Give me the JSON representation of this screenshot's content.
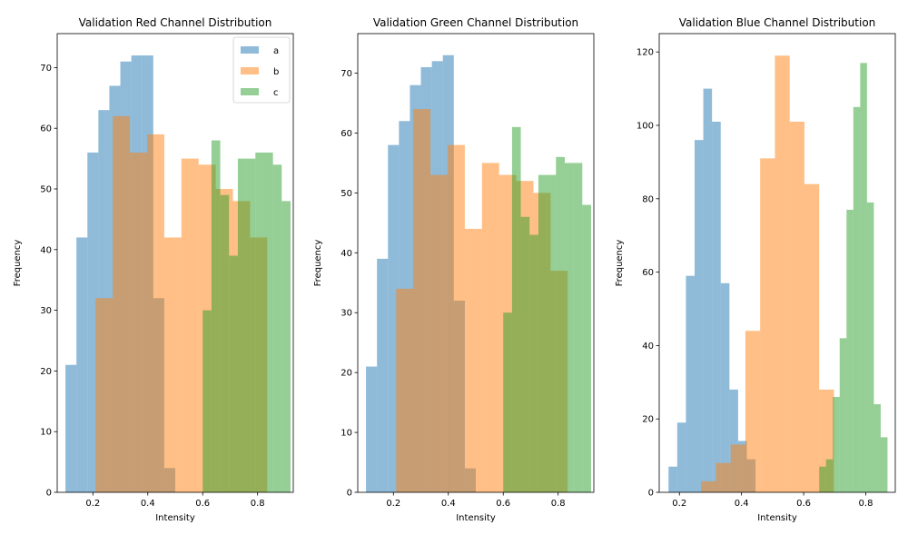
{
  "chart_data": [
    {
      "type": "histogram",
      "title": "Validation Red Channel Distribution",
      "xlabel": "Intensity",
      "ylabel": "Frequency",
      "xlim": [
        0.07,
        0.93
      ],
      "ylim": [
        0,
        75.6
      ],
      "xticks": [
        0.2,
        0.4,
        0.6,
        0.8
      ],
      "yticks": [
        0,
        10,
        20,
        30,
        40,
        50,
        60,
        70
      ],
      "alpha": 0.5,
      "grid": false,
      "legend": {
        "placement": "top-right",
        "entries": [
          "a",
          "b",
          "c"
        ]
      },
      "series": [
        {
          "name": "a",
          "color": "#1f77b4",
          "bins": [
            [
              0.1,
              0.14,
              21
            ],
            [
              0.14,
              0.18,
              42
            ],
            [
              0.18,
              0.22,
              56
            ],
            [
              0.22,
              0.26,
              63
            ],
            [
              0.26,
              0.3,
              67
            ],
            [
              0.3,
              0.34,
              71
            ],
            [
              0.34,
              0.38,
              72
            ],
            [
              0.38,
              0.42,
              72
            ],
            [
              0.42,
              0.46,
              32
            ],
            [
              0.46,
              0.5,
              4
            ]
          ]
        },
        {
          "name": "b",
          "color": "#ff7f0e",
          "bins": [
            [
              0.21,
              0.2725,
              32
            ],
            [
              0.2725,
              0.335,
              62
            ],
            [
              0.335,
              0.3975,
              56
            ],
            [
              0.3975,
              0.46,
              59
            ],
            [
              0.46,
              0.5225,
              42
            ],
            [
              0.5225,
              0.585,
              55
            ],
            [
              0.585,
              0.6475,
              54
            ],
            [
              0.6475,
              0.71,
              50
            ],
            [
              0.71,
              0.7725,
              48
            ],
            [
              0.7725,
              0.835,
              42
            ]
          ]
        },
        {
          "name": "c",
          "color": "#2ca02c",
          "bins": [
            [
              0.6,
              0.632,
              30
            ],
            [
              0.632,
              0.664,
              58
            ],
            [
              0.664,
              0.696,
              49
            ],
            [
              0.696,
              0.728,
              39
            ],
            [
              0.728,
              0.76,
              55
            ],
            [
              0.76,
              0.792,
              55
            ],
            [
              0.792,
              0.824,
              56
            ],
            [
              0.824,
              0.856,
              56
            ],
            [
              0.856,
              0.888,
              54
            ],
            [
              0.888,
              0.92,
              48
            ]
          ]
        }
      ]
    },
    {
      "type": "histogram",
      "title": "Validation Green Channel Distribution",
      "xlabel": "Intensity",
      "ylabel": "Frequency",
      "xlim": [
        0.07,
        0.93
      ],
      "ylim": [
        0,
        76.6
      ],
      "xticks": [
        0.2,
        0.4,
        0.6,
        0.8
      ],
      "yticks": [
        0,
        10,
        20,
        30,
        40,
        50,
        60,
        70
      ],
      "alpha": 0.5,
      "grid": false,
      "series": [
        {
          "name": "a",
          "color": "#1f77b4",
          "bins": [
            [
              0.1,
              0.14,
              21
            ],
            [
              0.14,
              0.18,
              39
            ],
            [
              0.18,
              0.22,
              58
            ],
            [
              0.22,
              0.26,
              62
            ],
            [
              0.26,
              0.3,
              68
            ],
            [
              0.3,
              0.34,
              71
            ],
            [
              0.34,
              0.38,
              72
            ],
            [
              0.38,
              0.42,
              73
            ],
            [
              0.42,
              0.46,
              32
            ],
            [
              0.46,
              0.5,
              4
            ]
          ]
        },
        {
          "name": "b",
          "color": "#ff7f0e",
          "bins": [
            [
              0.21,
              0.2725,
              34
            ],
            [
              0.2725,
              0.335,
              64
            ],
            [
              0.335,
              0.3975,
              53
            ],
            [
              0.3975,
              0.46,
              58
            ],
            [
              0.46,
              0.5225,
              44
            ],
            [
              0.5225,
              0.585,
              55
            ],
            [
              0.585,
              0.6475,
              53
            ],
            [
              0.6475,
              0.71,
              52
            ],
            [
              0.71,
              0.7725,
              50
            ],
            [
              0.7725,
              0.835,
              37
            ]
          ]
        },
        {
          "name": "c",
          "color": "#2ca02c",
          "bins": [
            [
              0.6,
              0.632,
              30
            ],
            [
              0.632,
              0.664,
              61
            ],
            [
              0.664,
              0.696,
              46
            ],
            [
              0.696,
              0.728,
              43
            ],
            [
              0.728,
              0.76,
              53
            ],
            [
              0.76,
              0.792,
              53
            ],
            [
              0.792,
              0.824,
              56
            ],
            [
              0.824,
              0.856,
              55
            ],
            [
              0.856,
              0.888,
              55
            ],
            [
              0.888,
              0.92,
              48
            ]
          ]
        }
      ]
    },
    {
      "type": "histogram",
      "title": "Validation Blue Channel Distribution",
      "xlabel": "Intensity",
      "ylabel": "Frequency",
      "xlim": [
        0.135,
        0.895
      ],
      "ylim": [
        0,
        125
      ],
      "xticks": [
        0.2,
        0.4,
        0.6,
        0.8
      ],
      "yticks": [
        0,
        20,
        40,
        60,
        80,
        100,
        120
      ],
      "alpha": 0.5,
      "grid": false,
      "series": [
        {
          "name": "a",
          "color": "#1f77b4",
          "bins": [
            [
              0.165,
              0.193,
              7
            ],
            [
              0.193,
              0.221,
              19
            ],
            [
              0.221,
              0.249,
              59
            ],
            [
              0.249,
              0.277,
              96
            ],
            [
              0.277,
              0.305,
              110
            ],
            [
              0.305,
              0.333,
              101
            ],
            [
              0.333,
              0.361,
              57
            ],
            [
              0.361,
              0.389,
              28
            ],
            [
              0.389,
              0.417,
              14
            ],
            [
              0.417,
              0.445,
              9
            ]
          ]
        },
        {
          "name": "b",
          "color": "#ff7f0e",
          "bins": [
            [
              0.27,
              0.3175,
              3
            ],
            [
              0.3175,
              0.365,
              8
            ],
            [
              0.365,
              0.4125,
              13
            ],
            [
              0.4125,
              0.46,
              44
            ],
            [
              0.46,
              0.5075,
              91
            ],
            [
              0.5075,
              0.555,
              119
            ],
            [
              0.555,
              0.6025,
              101
            ],
            [
              0.6025,
              0.65,
              84
            ],
            [
              0.65,
              0.6975,
              28
            ],
            [
              0.6975,
              0.745,
              0
            ]
          ]
        },
        {
          "name": "c",
          "color": "#2ca02c",
          "bins": [
            [
              0.65,
              0.672,
              7
            ],
            [
              0.672,
              0.694,
              9
            ],
            [
              0.694,
              0.716,
              26
            ],
            [
              0.716,
              0.738,
              42
            ],
            [
              0.738,
              0.76,
              77
            ],
            [
              0.76,
              0.782,
              105
            ],
            [
              0.782,
              0.804,
              117
            ],
            [
              0.804,
              0.826,
              79
            ],
            [
              0.826,
              0.848,
              24
            ],
            [
              0.848,
              0.87,
              15
            ]
          ]
        }
      ]
    }
  ]
}
